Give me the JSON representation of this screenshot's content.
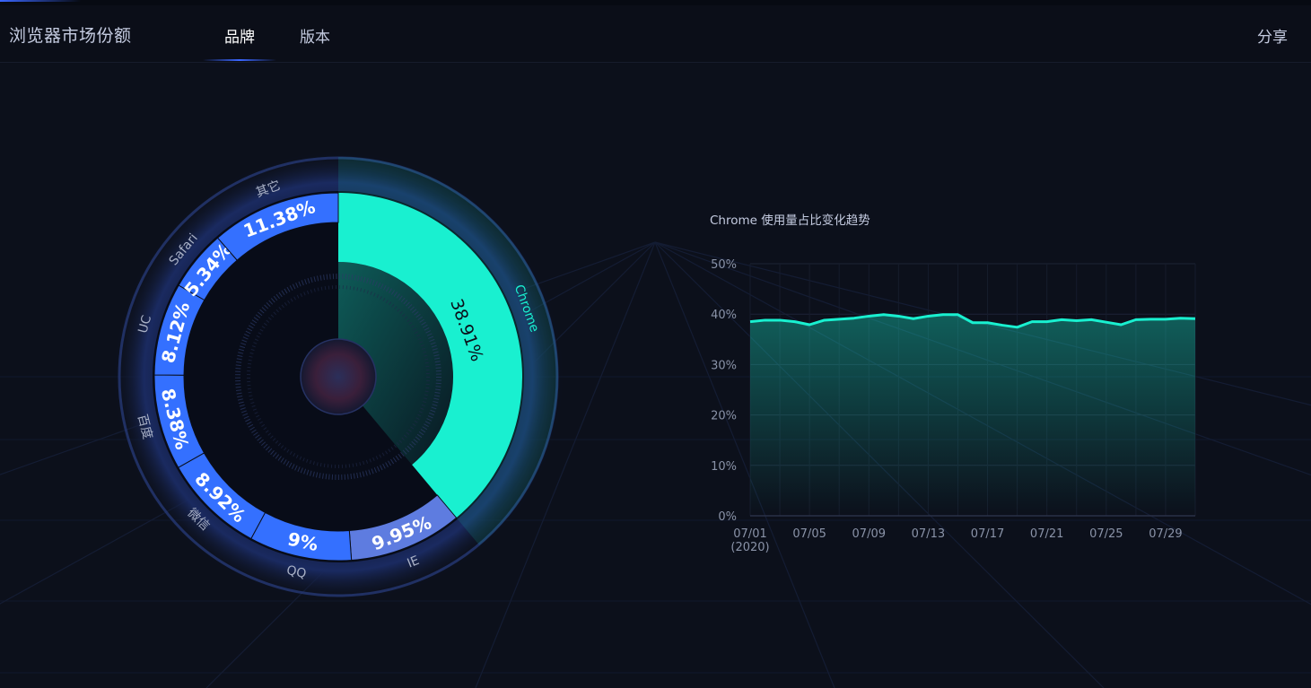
{
  "header": {
    "title": "浏览器市场份额",
    "tabs": [
      {
        "label": "品牌",
        "active": true
      },
      {
        "label": "版本",
        "active": false
      }
    ],
    "share_label": "分享"
  },
  "colors": {
    "accent": "#19f0d0",
    "brand_blue": "#3470ff",
    "ie_blue": "#5e7ce0",
    "background": "#0c101b"
  },
  "chart_data": [
    {
      "type": "pie",
      "variant": "donut",
      "highlighted": "Chrome",
      "slices": [
        {
          "name": "Chrome",
          "value": 38.91,
          "label": "38.91%"
        },
        {
          "name": "IE",
          "value": 9.95,
          "label": "9.95%"
        },
        {
          "name": "QQ",
          "value": 9,
          "label": "9%"
        },
        {
          "name": "微信",
          "value": 8.92,
          "label": "8.92%"
        },
        {
          "name": "百度",
          "value": 8.38,
          "label": "8.38%"
        },
        {
          "name": "UC",
          "value": 8.12,
          "label": "8.12%"
        },
        {
          "name": "Safari",
          "value": 5.34,
          "label": "5.34%"
        },
        {
          "name": "其它",
          "value": 11.38,
          "label": "11.38%"
        }
      ]
    },
    {
      "type": "area",
      "title": "Chrome 使用量占比变化趋势",
      "ylim": [
        0,
        50
      ],
      "yticks": [
        "0%",
        "10%",
        "20%",
        "30%",
        "40%",
        "50%"
      ],
      "xticks": [
        "07/01",
        "07/05",
        "07/09",
        "07/13",
        "07/17",
        "07/21",
        "07/25",
        "07/29"
      ],
      "xtick_sub": "(2020)",
      "x": [
        "07/01",
        "07/02",
        "07/03",
        "07/04",
        "07/05",
        "07/06",
        "07/07",
        "07/08",
        "07/09",
        "07/10",
        "07/11",
        "07/12",
        "07/13",
        "07/14",
        "07/15",
        "07/16",
        "07/17",
        "07/18",
        "07/19",
        "07/20",
        "07/21",
        "07/22",
        "07/23",
        "07/24",
        "07/25",
        "07/26",
        "07/27",
        "07/28",
        "07/29",
        "07/30",
        "07/31"
      ],
      "series": [
        {
          "values": [
            38.5,
            38.8,
            38.8,
            38.5,
            37.9,
            38.8,
            39.0,
            39.2,
            39.6,
            39.9,
            39.6,
            39.1,
            39.6,
            39.9,
            39.9,
            38.3,
            38.3,
            37.8,
            37.4,
            38.5,
            38.5,
            38.9,
            38.7,
            38.9,
            38.4,
            37.9,
            38.9,
            39.0,
            39.0,
            39.2,
            39.1
          ]
        }
      ],
      "grid": true
    }
  ]
}
